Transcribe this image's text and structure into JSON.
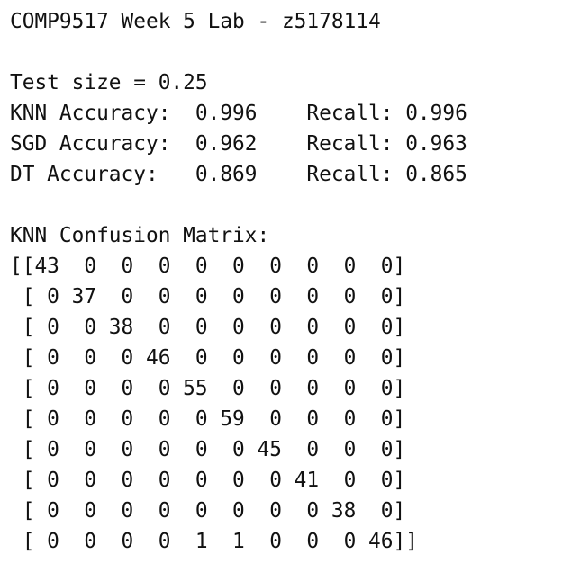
{
  "header": "COMP9517 Week 5 Lab - z5178114",
  "test_size_line": "Test size = 0.25",
  "results": [
    "KNN Accuracy:  0.996    Recall: 0.996",
    "SGD Accuracy:  0.962    Recall: 0.963",
    "DT Accuracy:   0.869    Recall: 0.865"
  ],
  "matrix_title": "KNN Confusion Matrix:",
  "matrix_rows": [
    "[[43  0  0  0  0  0  0  0  0  0]",
    " [ 0 37  0  0  0  0  0  0  0  0]",
    " [ 0  0 38  0  0  0  0  0  0  0]",
    " [ 0  0  0 46  0  0  0  0  0  0]",
    " [ 0  0  0  0 55  0  0  0  0  0]",
    " [ 0  0  0  0  0 59  0  0  0  0]",
    " [ 0  0  0  0  0  0 45  0  0  0]",
    " [ 0  0  0  0  0  0  0 41  0  0]",
    " [ 0  0  0  0  0  0  0  0 38  0]",
    " [ 0  0  0  0  1  1  0  0  0 46]]"
  ]
}
